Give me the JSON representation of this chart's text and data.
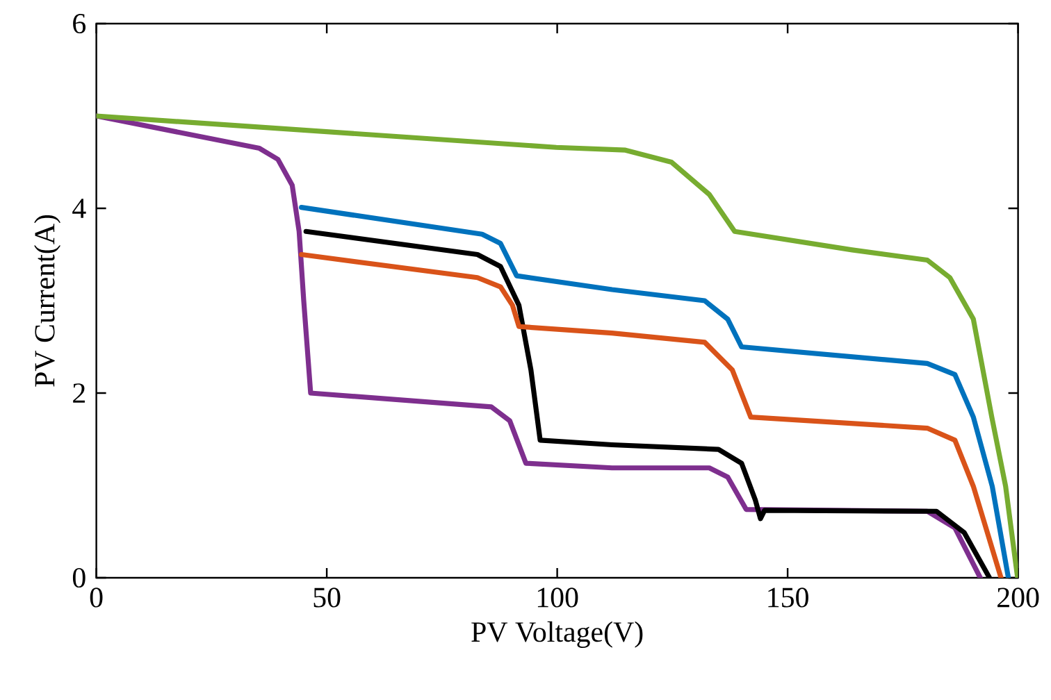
{
  "chart_data": {
    "type": "line",
    "xlabel": "PV Voltage(V)",
    "ylabel": "PV Current(A)",
    "xlim": [
      0,
      200
    ],
    "ylim": [
      0,
      6
    ],
    "xticks": [
      0,
      50,
      100,
      150,
      200
    ],
    "yticks": [
      0,
      2,
      4,
      6
    ],
    "marker": "none",
    "line_style": "solid",
    "series": [
      {
        "color": "#7e2f8e",
        "x": [
          0,
          35.4,
          39.4,
          42.5,
          44,
          45,
          46.5,
          85.7,
          89.7,
          93.2,
          111.9,
          133,
          137,
          141,
          180.3,
          186.3,
          191.8
        ],
        "values": [
          5.0,
          4.65,
          4.53,
          4.25,
          3.75,
          3.0,
          2.0,
          1.85,
          1.7,
          1.24,
          1.19,
          1.19,
          1.09,
          0.74,
          0.72,
          0.54,
          0
        ]
      },
      {
        "color": "#000000",
        "x": [
          45.5,
          82.7,
          87.7,
          91.7,
          94.3,
          96.3,
          111.9,
          135,
          140,
          143,
          144.1,
          145,
          182.3,
          188.3,
          193.8
        ],
        "values": [
          3.75,
          3.5,
          3.37,
          2.95,
          2.25,
          1.49,
          1.44,
          1.39,
          1.24,
          0.84,
          0.64,
          0.73,
          0.72,
          0.49,
          0
        ]
      },
      {
        "color": "#d95319",
        "x": [
          44.5,
          82.7,
          87.7,
          90.3,
          91.7,
          111.9,
          132,
          138,
          142,
          180.3,
          186.3,
          190.3,
          196.3
        ],
        "values": [
          3.5,
          3.25,
          3.15,
          2.95,
          2.72,
          2.65,
          2.55,
          2.25,
          1.74,
          1.62,
          1.49,
          0.99,
          0
        ]
      },
      {
        "color": "#0072bd",
        "x": [
          44.5,
          83.7,
          87.7,
          91.2,
          111.9,
          132,
          137,
          140,
          180.3,
          186.3,
          190.3,
          194.4,
          197.9
        ],
        "values": [
          4.01,
          3.72,
          3.62,
          3.27,
          3.12,
          3.0,
          2.8,
          2.5,
          2.32,
          2.2,
          1.74,
          0.99,
          0
        ]
      },
      {
        "color": "#77ac30",
        "x": [
          0,
          99.8,
          114.8,
          124.8,
          133,
          138.5,
          164,
          180.3,
          185.2,
          190.3,
          194.3,
          197.3,
          199.9
        ],
        "values": [
          5.0,
          4.66,
          4.63,
          4.5,
          4.15,
          3.75,
          3.55,
          3.44,
          3.25,
          2.8,
          1.74,
          0.99,
          0
        ]
      }
    ]
  }
}
